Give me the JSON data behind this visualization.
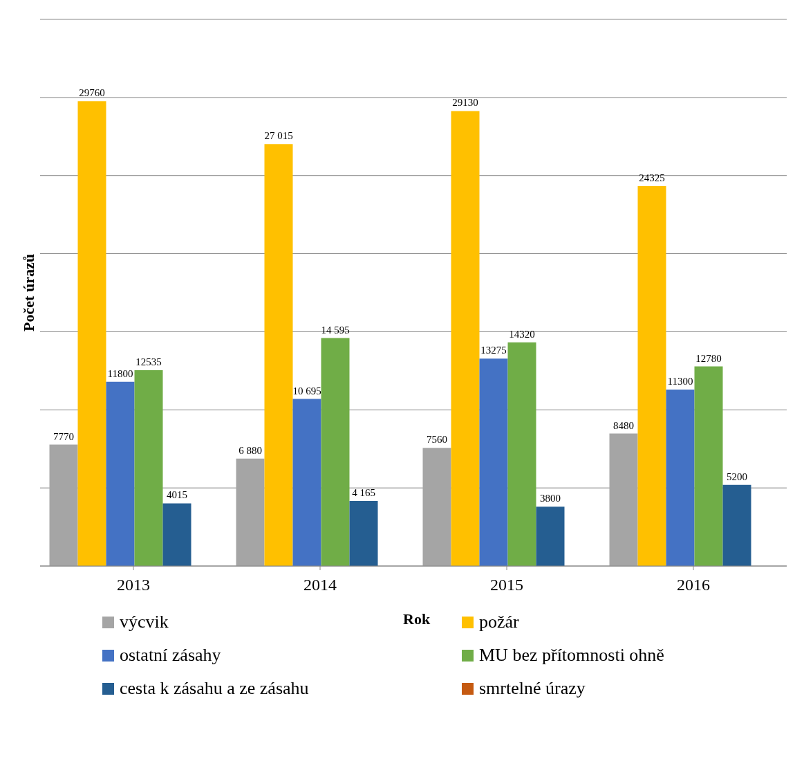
{
  "chart_data": {
    "type": "bar",
    "xlabel": "Rok",
    "ylabel": "Počet úrazů",
    "categories": [
      "2013",
      "2014",
      "2015",
      "2016"
    ],
    "ylim": [
      0,
      35000
    ],
    "tick_labels": "x",
    "grid": "y",
    "legend": "bottom",
    "series": [
      {
        "name": "výcvik",
        "color": "#a5a5a5",
        "values": [
          7770,
          6880,
          7560,
          8480
        ],
        "value_labels": [
          "7770",
          "6 880",
          "7560",
          "8480"
        ]
      },
      {
        "name": "požár",
        "color": "#ffc000",
        "values": [
          29760,
          27015,
          29130,
          24325
        ],
        "value_labels": [
          "29760",
          "27 015",
          "29130",
          "24325"
        ]
      },
      {
        "name": "ostatní zásahy",
        "color": "#4472c4",
        "values": [
          11800,
          10695,
          13275,
          11300
        ],
        "value_labels": [
          "11800",
          "10 695",
          "13275",
          "11300"
        ]
      },
      {
        "name": "MU bez přítomnosti ohně",
        "color": "#70ad47",
        "values": [
          12535,
          14595,
          14320,
          12780
        ],
        "value_labels": [
          "12535",
          "14 595",
          "14320",
          "12780"
        ]
      },
      {
        "name": "cesta k zásahu a ze zásahu",
        "color": "#255e91",
        "values": [
          4015,
          4165,
          3800,
          5200
        ],
        "value_labels": [
          "4015",
          "4 165",
          "3800",
          "5200"
        ]
      },
      {
        "name": "smrtelné  úrazy",
        "color": "#c55a11",
        "values": [
          null,
          null,
          null,
          null
        ],
        "value_labels": [
          null,
          null,
          null,
          null
        ]
      }
    ]
  }
}
